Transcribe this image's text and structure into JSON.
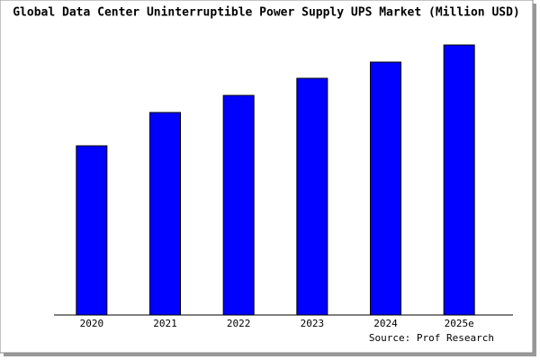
{
  "chart_data": {
    "type": "bar",
    "title": "Global Data Center Uninterruptible Power Supply UPS Market (Million USD)",
    "categories": [
      "2020",
      "2021",
      "2022",
      "2023",
      "2024",
      "2025e"
    ],
    "values": [
      188,
      225,
      244,
      263,
      281,
      300
    ],
    "color": "#0000ff",
    "ylim": [
      0,
      310
    ],
    "source": "Source: Prof Research"
  }
}
